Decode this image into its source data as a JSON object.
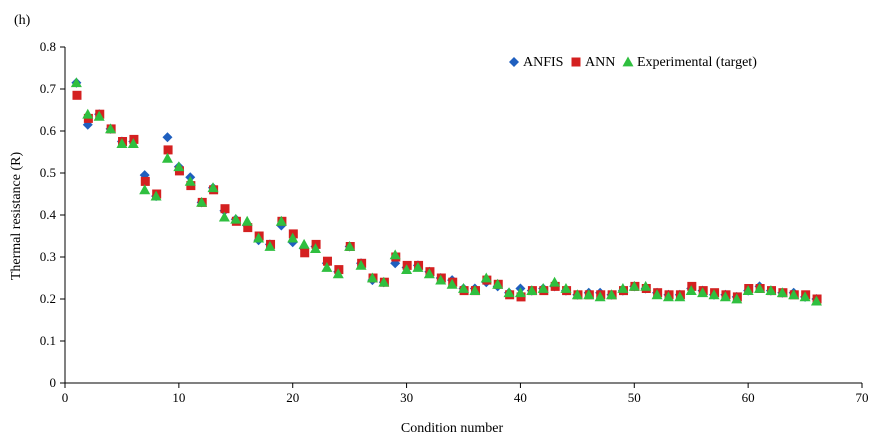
{
  "panel_label": "(h)",
  "chart_data": {
    "type": "scatter",
    "title": "",
    "xlabel": "Condition number",
    "ylabel": "Thermal resistance (R)",
    "xlim": [
      0,
      70
    ],
    "ylim": [
      0,
      0.8
    ],
    "xticks": [
      0,
      10,
      20,
      30,
      40,
      50,
      60,
      70
    ],
    "yticks": [
      0,
      0.1,
      0.2,
      0.3,
      0.4,
      0.5,
      0.6,
      0.7,
      0.8
    ],
    "xtick_labels": [
      "0",
      "10",
      "20",
      "30",
      "40",
      "50",
      "60",
      "70"
    ],
    "ytick_labels": [
      "0",
      "0.1",
      "0.2",
      "0.3",
      "0.4",
      "0.5",
      "0.6",
      "0.7",
      "0.8"
    ],
    "grid": false,
    "legend_position": "top-right",
    "x": [
      1,
      2,
      3,
      4,
      5,
      6,
      7,
      8,
      9,
      10,
      11,
      12,
      13,
      14,
      15,
      16,
      17,
      18,
      19,
      20,
      21,
      22,
      23,
      24,
      25,
      26,
      27,
      28,
      29,
      30,
      31,
      32,
      33,
      34,
      35,
      36,
      37,
      38,
      39,
      40,
      41,
      42,
      43,
      44,
      45,
      46,
      47,
      48,
      49,
      50,
      51,
      52,
      53,
      54,
      55,
      56,
      57,
      58,
      59,
      60,
      61,
      62,
      63,
      64,
      65,
      66
    ],
    "series": [
      {
        "name": "ANFIS",
        "marker": "diamond",
        "color": "#1f5fbf",
        "values": [
          0.715,
          0.615,
          0.64,
          0.605,
          0.575,
          0.575,
          0.495,
          0.445,
          0.585,
          0.515,
          0.49,
          0.43,
          0.465,
          0.41,
          0.39,
          0.375,
          0.34,
          0.33,
          0.375,
          0.335,
          0.32,
          0.325,
          0.285,
          0.265,
          0.325,
          0.285,
          0.245,
          0.24,
          0.285,
          0.275,
          0.28,
          0.265,
          0.25,
          0.245,
          0.225,
          0.225,
          0.24,
          0.23,
          0.215,
          0.225,
          0.22,
          0.225,
          0.23,
          0.22,
          0.21,
          0.215,
          0.215,
          0.21,
          0.22,
          0.23,
          0.225,
          0.215,
          0.21,
          0.21,
          0.225,
          0.22,
          0.21,
          0.21,
          0.205,
          0.22,
          0.23,
          0.22,
          0.215,
          0.215,
          0.205,
          0.2
        ]
      },
      {
        "name": "ANN",
        "marker": "square",
        "color": "#d42020",
        "values": [
          0.685,
          0.63,
          0.64,
          0.605,
          0.575,
          0.58,
          0.48,
          0.45,
          0.555,
          0.505,
          0.47,
          0.43,
          0.46,
          0.415,
          0.385,
          0.37,
          0.35,
          0.33,
          0.385,
          0.355,
          0.31,
          0.33,
          0.29,
          0.27,
          0.325,
          0.285,
          0.25,
          0.24,
          0.3,
          0.28,
          0.28,
          0.265,
          0.25,
          0.24,
          0.22,
          0.22,
          0.245,
          0.235,
          0.21,
          0.205,
          0.22,
          0.22,
          0.23,
          0.22,
          0.21,
          0.21,
          0.21,
          0.21,
          0.22,
          0.23,
          0.225,
          0.215,
          0.21,
          0.21,
          0.23,
          0.22,
          0.215,
          0.21,
          0.205,
          0.225,
          0.225,
          0.22,
          0.215,
          0.21,
          0.21,
          0.2
        ]
      },
      {
        "name": "Experimental (target)",
        "marker": "triangle",
        "color": "#2fbf3f",
        "values": [
          0.715,
          0.64,
          0.635,
          0.605,
          0.57,
          0.57,
          0.46,
          0.445,
          0.535,
          0.515,
          0.48,
          0.43,
          0.465,
          0.395,
          0.39,
          0.385,
          0.345,
          0.325,
          0.385,
          0.345,
          0.33,
          0.32,
          0.275,
          0.26,
          0.325,
          0.28,
          0.25,
          0.24,
          0.305,
          0.27,
          0.275,
          0.26,
          0.245,
          0.235,
          0.225,
          0.22,
          0.25,
          0.235,
          0.215,
          0.215,
          0.22,
          0.225,
          0.24,
          0.225,
          0.21,
          0.21,
          0.205,
          0.21,
          0.225,
          0.23,
          0.23,
          0.21,
          0.205,
          0.205,
          0.22,
          0.215,
          0.21,
          0.205,
          0.2,
          0.22,
          0.225,
          0.22,
          0.215,
          0.21,
          0.205,
          0.195
        ]
      }
    ]
  }
}
